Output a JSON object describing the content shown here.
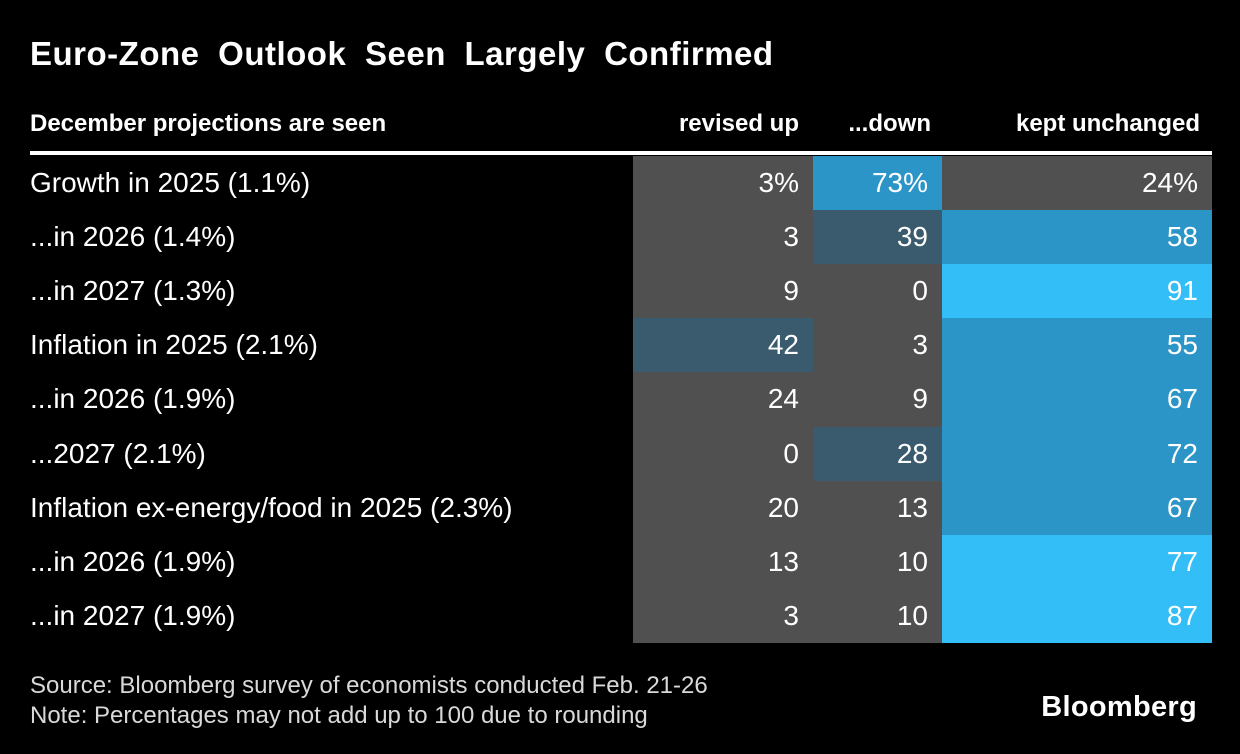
{
  "title": "Euro-Zone Outlook Seen Largely Confirmed",
  "colors": {
    "background": "#000000",
    "text": "#ffffff",
    "footnote_text": "#d9d9d9",
    "gray": "#505050",
    "darkslate": "#3a5b6e",
    "medium": "#2b95c8",
    "bright": "#33bef8"
  },
  "table": {
    "label_header": "December projections are seen",
    "columns": [
      "revised up",
      "...down",
      "kept unchanged"
    ],
    "rows": [
      {
        "label": "Growth in 2025 (1.1%)",
        "cells": [
          {
            "text": "3%",
            "tone": "gray"
          },
          {
            "text": "73%",
            "tone": "medium"
          },
          {
            "text": "24%",
            "tone": "gray"
          }
        ]
      },
      {
        "label": "...in 2026 (1.4%)",
        "cells": [
          {
            "text": "3",
            "tone": "gray"
          },
          {
            "text": "39",
            "tone": "darkslate"
          },
          {
            "text": "58",
            "tone": "medium"
          }
        ]
      },
      {
        "label": "...in 2027 (1.3%)",
        "cells": [
          {
            "text": "9",
            "tone": "gray"
          },
          {
            "text": "0",
            "tone": "gray"
          },
          {
            "text": "91",
            "tone": "bright"
          }
        ]
      },
      {
        "label": "Inflation in 2025 (2.1%)",
        "cells": [
          {
            "text": "42",
            "tone": "darkslate"
          },
          {
            "text": "3",
            "tone": "gray"
          },
          {
            "text": "55",
            "tone": "medium"
          }
        ]
      },
      {
        "label": "...in 2026 (1.9%)",
        "cells": [
          {
            "text": "24",
            "tone": "gray"
          },
          {
            "text": "9",
            "tone": "gray"
          },
          {
            "text": "67",
            "tone": "medium"
          }
        ]
      },
      {
        "label": "...2027 (2.1%)",
        "cells": [
          {
            "text": "0",
            "tone": "gray"
          },
          {
            "text": "28",
            "tone": "darkslate"
          },
          {
            "text": "72",
            "tone": "medium"
          }
        ]
      },
      {
        "label": "Inflation ex-energy/food in 2025 (2.3%)",
        "cells": [
          {
            "text": "20",
            "tone": "gray"
          },
          {
            "text": "13",
            "tone": "gray"
          },
          {
            "text": "67",
            "tone": "medium"
          }
        ]
      },
      {
        "label": "...in 2026 (1.9%)",
        "cells": [
          {
            "text": "13",
            "tone": "gray"
          },
          {
            "text": "10",
            "tone": "gray"
          },
          {
            "text": "77",
            "tone": "bright"
          }
        ]
      },
      {
        "label": "...in 2027 (1.9%)",
        "cells": [
          {
            "text": "3",
            "tone": "gray"
          },
          {
            "text": "10",
            "tone": "gray"
          },
          {
            "text": "87",
            "tone": "bright"
          }
        ]
      }
    ]
  },
  "footer": {
    "source": "Source: Bloomberg survey of economists conducted Feb. 21-26",
    "note": "Note: Percentages may not add up to 100 due to rounding",
    "logo": "Bloomberg"
  },
  "chart_data": {
    "type": "heatmap",
    "title": "Euro-Zone Outlook Seen Largely Confirmed",
    "subtitle": "December projections are seen",
    "columns": [
      "revised up",
      "...down",
      "kept unchanged"
    ],
    "rows": [
      "Growth in 2025 (1.1%)",
      "...in 2026 (1.4%)",
      "...in 2027 (1.3%)",
      "Inflation in 2025 (2.1%)",
      "...in 2026 (1.9%)",
      "...2027 (2.1%)",
      "Inflation ex-energy/food in 2025 (2.3%)",
      "...in 2026 (1.9%)",
      "...in 2027 (1.9%)"
    ],
    "values": [
      [
        3,
        73,
        24
      ],
      [
        3,
        39,
        58
      ],
      [
        9,
        0,
        91
      ],
      [
        42,
        3,
        55
      ],
      [
        24,
        9,
        67
      ],
      [
        0,
        28,
        72
      ],
      [
        20,
        13,
        67
      ],
      [
        13,
        10,
        77
      ],
      [
        3,
        10,
        87
      ]
    ],
    "unit": "%",
    "value_range": [
      0,
      100
    ],
    "color_scale": "dark gray (low) to bright cyan-blue (high)",
    "legend_position": "none",
    "source": "Source: Bloomberg survey of economists conducted Feb. 21-26",
    "note": "Note: Percentages may not add up to 100 due to rounding"
  }
}
